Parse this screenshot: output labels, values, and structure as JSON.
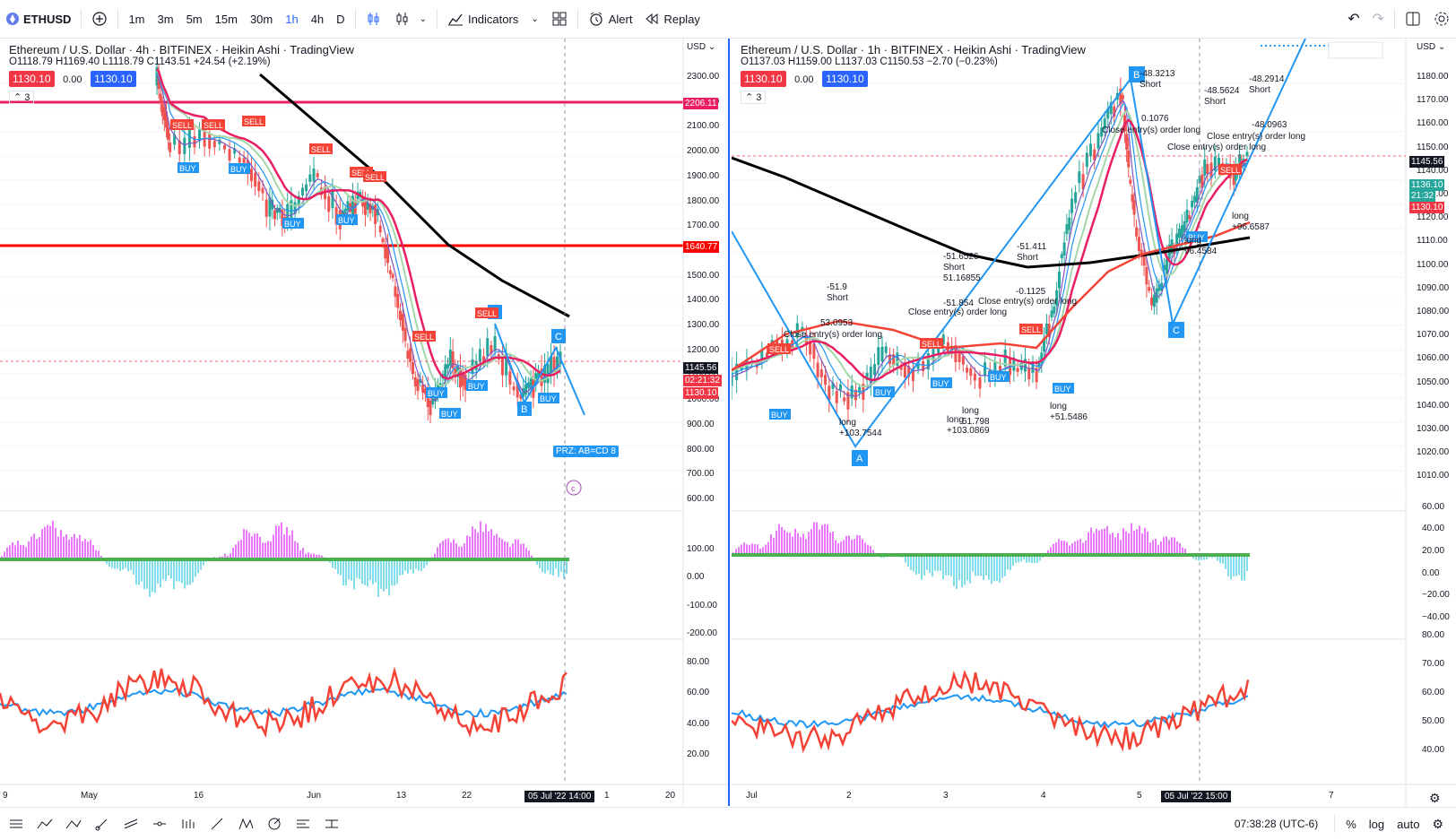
{
  "toolbar": {
    "symbol": "ETHUSD",
    "intervals": [
      "1m",
      "3m",
      "5m",
      "15m",
      "30m",
      "1h",
      "4h",
      "D"
    ],
    "active_interval": "1h",
    "indicators_label": "Indicators",
    "alert_label": "Alert",
    "replay_label": "Replay"
  },
  "left_chart": {
    "title": "Ethereum / U.S. Dollar · 4h · BITFINEX · Heikin Ashi · TradingView",
    "ohlc": "O1118.79 H1169.40 L1118.79 C1143.51 +24.54 (+2.19%)",
    "bid": "1130.10",
    "spread": "0.00",
    "ask": "1130.10",
    "indicator_count": "3",
    "currency": "USD",
    "price_axis": [
      "2300.00",
      "2200.00",
      "2100.00",
      "2000.00",
      "1900.00",
      "1800.00",
      "1700.00",
      "1600.00",
      "1500.00",
      "1400.00",
      "1300.00",
      "1200.00",
      "1100.00",
      "1000.00",
      "900.00",
      "800.00",
      "700.00",
      "600.00"
    ],
    "tag_2206": "2206.11",
    "tag_1640": "1640.77",
    "tag_price": "1145.56",
    "tag_timer": "02:21:32",
    "tag_bid": "1130.10",
    "osc_axis": [
      "100.00",
      "0.00",
      "-100.00",
      "-200.00"
    ],
    "rsi_axis": [
      "80.00",
      "60.00",
      "40.00",
      "20.00"
    ],
    "time_axis": [
      "9",
      "May",
      "16",
      "Jun",
      "13",
      "22",
      "1",
      "20"
    ],
    "crosshair_time": "05 Jul '22   14:00",
    "prz_label": "PRZ: AB=CD 8",
    "pattern_a": "A",
    "pattern_b": "B",
    "pattern_c": "C",
    "sell": "SELL",
    "buy": "BUY"
  },
  "right_chart": {
    "title": "Ethereum / U.S. Dollar · 1h · BITFINEX · Heikin Ashi · TradingView",
    "ohlc": "O1137.03 H1159.00 L1137.03 C1150.53 −2.70 (−0.23%)",
    "bid": "1130.10",
    "spread": "0.00",
    "ask": "1130.10",
    "indicator_count": "3",
    "currency": "USD",
    "price_axis": [
      "1180.00",
      "1170.00",
      "1160.00",
      "1150.00",
      "1140.00",
      "1130.00",
      "1120.00",
      "1110.00",
      "1100.00",
      "1090.00",
      "1080.00",
      "1070.00",
      "1060.00",
      "1050.00",
      "1040.00",
      "1030.00",
      "1020.00",
      "1010.00"
    ],
    "tag_price": "1145.56",
    "tag_last": "1136.10",
    "tag_timer": "21:32",
    "tag_bid": "1130.10",
    "osc_axis": [
      "60.00",
      "40.00",
      "20.00",
      "0.00",
      "−20.00",
      "−40.00"
    ],
    "rsi_axis": [
      "80.00",
      "70.00",
      "60.00",
      "50.00",
      "40.00"
    ],
    "time_axis": [
      "Jul",
      "2",
      "3",
      "4",
      "5",
      "7"
    ],
    "crosshair_time": "05 Jul '22   15:00",
    "annotations": {
      "short1": "-51.9\nShort",
      "s2": "53.0953",
      "close1": "Close entry(s) order long",
      "long1": "long\n+103.7544",
      "a2": "-51.6526\nShort\n51.16855",
      "close2": "Close entry(s) order long",
      "a3": "-51.854",
      "a4": "-51.411\nShort",
      "a5": "-0.1125",
      "close3": "Close entry(s) order long",
      "long2": "long\n+103.0869",
      "long3": "long\n51.798",
      "long4": "long\n+51.5486",
      "b1": "-48.3213\nShort",
      "b2": "0.1076",
      "close4": "Close entry(s) order long",
      "b3": "-48.5624\nShort",
      "b4": "-48.2914\nShort",
      "b5": "-48.0963",
      "close5": "Close entry(s) order long",
      "close6": "Close entry(s) order long",
      "long5": "long\n+96.6587",
      "long6": "long\n96.4584"
    },
    "pattern_a": "A",
    "pattern_c": "C",
    "pattern_b": "B",
    "sell": "SELL",
    "buy": "BUY"
  },
  "status": {
    "clock": "07:38:28 (UTC-6)",
    "percent": "%",
    "log": "log",
    "auto": "auto"
  },
  "colors": {
    "up": "#26a69a",
    "down": "#ef5350",
    "blue": "#2196f3",
    "magenta": "#e91e63",
    "red_line": "#ff0000",
    "black_line": "#000000"
  }
}
